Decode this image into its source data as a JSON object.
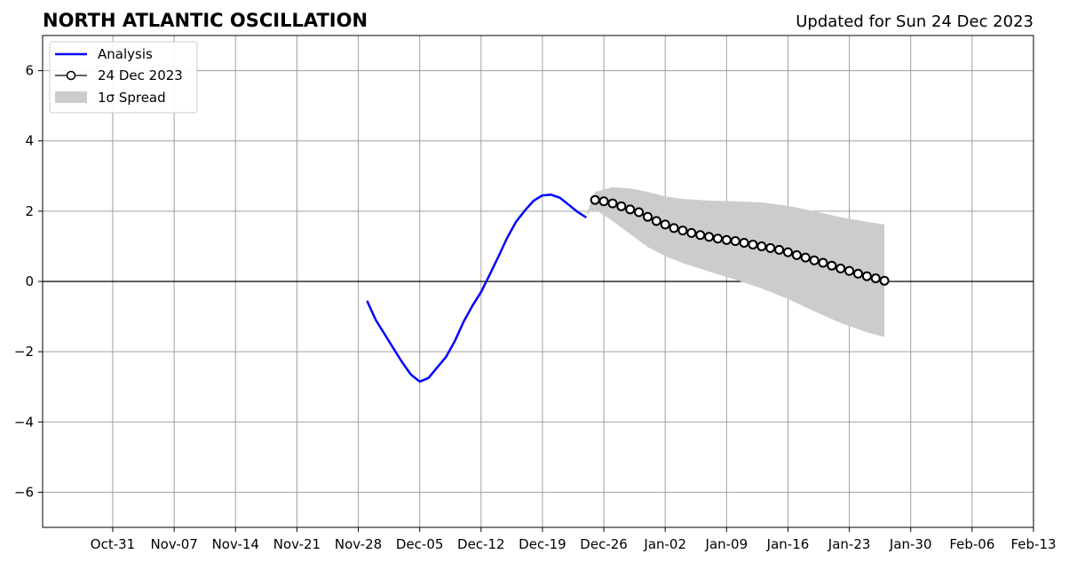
{
  "chart_data": {
    "type": "line",
    "title": "NORTH ATLANTIC OSCILLATION",
    "subtitle": "Updated for Sun 24 Dec 2023",
    "xlabel": "",
    "ylabel": "",
    "xlim": [
      "2023-10-23",
      "2024-02-13"
    ],
    "ylim": [
      -7,
      7
    ],
    "x_ticks": [
      {
        "date": "2023-10-31",
        "label": "Oct-31"
      },
      {
        "date": "2023-11-07",
        "label": "Nov-07"
      },
      {
        "date": "2023-11-14",
        "label": "Nov-14"
      },
      {
        "date": "2023-11-21",
        "label": "Nov-21"
      },
      {
        "date": "2023-11-28",
        "label": "Nov-28"
      },
      {
        "date": "2023-12-05",
        "label": "Dec-05"
      },
      {
        "date": "2023-12-12",
        "label": "Dec-12"
      },
      {
        "date": "2023-12-19",
        "label": "Dec-19"
      },
      {
        "date": "2023-12-26",
        "label": "Dec-26"
      },
      {
        "date": "2024-01-02",
        "label": "Jan-02"
      },
      {
        "date": "2024-01-09",
        "label": "Jan-09"
      },
      {
        "date": "2024-01-16",
        "label": "Jan-16"
      },
      {
        "date": "2024-01-23",
        "label": "Jan-23"
      },
      {
        "date": "2024-01-30",
        "label": "Jan-30"
      },
      {
        "date": "2024-02-06",
        "label": "Feb-06"
      },
      {
        "date": "2024-02-13",
        "label": "Feb-13"
      }
    ],
    "y_ticks": [
      {
        "value": -6,
        "label": "−6"
      },
      {
        "value": -4,
        "label": "−4"
      },
      {
        "value": -2,
        "label": "−2"
      },
      {
        "value": 0,
        "label": "0"
      },
      {
        "value": 2,
        "label": "2"
      },
      {
        "value": 4,
        "label": "4"
      },
      {
        "value": 6,
        "label": "6"
      }
    ],
    "grid": true,
    "zero_line": true,
    "legend_position": "top-left",
    "series": [
      {
        "name": "Analysis",
        "kind": "line",
        "color": "#0000ff",
        "x": [
          "2023-11-29",
          "2023-11-30",
          "2023-12-01",
          "2023-12-02",
          "2023-12-03",
          "2023-12-04",
          "2023-12-05",
          "2023-12-06",
          "2023-12-07",
          "2023-12-08",
          "2023-12-09",
          "2023-12-10",
          "2023-12-11",
          "2023-12-12",
          "2023-12-13",
          "2023-12-14",
          "2023-12-15",
          "2023-12-16",
          "2023-12-17",
          "2023-12-18",
          "2023-12-19",
          "2023-12-20",
          "2023-12-21",
          "2023-12-22",
          "2023-12-23",
          "2023-12-24"
        ],
        "y": [
          -0.55,
          -1.1,
          -1.5,
          -1.9,
          -2.3,
          -2.65,
          -2.85,
          -2.75,
          -2.45,
          -2.15,
          -1.7,
          -1.15,
          -0.7,
          -0.3,
          0.2,
          0.72,
          1.25,
          1.7,
          2.02,
          2.3,
          2.45,
          2.47,
          2.38,
          2.18,
          1.98,
          1.82
        ]
      },
      {
        "name": "24 Dec 2023",
        "kind": "line-marker",
        "color": "#000000",
        "marker_face": "#ffffff",
        "x": [
          "2023-12-25",
          "2023-12-26",
          "2023-12-27",
          "2023-12-28",
          "2023-12-29",
          "2023-12-30",
          "2023-12-31",
          "2024-01-01",
          "2024-01-02",
          "2024-01-03",
          "2024-01-04",
          "2024-01-05",
          "2024-01-06",
          "2024-01-07",
          "2024-01-08",
          "2024-01-09",
          "2024-01-10",
          "2024-01-11",
          "2024-01-12",
          "2024-01-13",
          "2024-01-14",
          "2024-01-15",
          "2024-01-16",
          "2024-01-17",
          "2024-01-18",
          "2024-01-19",
          "2024-01-20",
          "2024-01-21",
          "2024-01-22",
          "2024-01-23",
          "2024-01-24",
          "2024-01-25",
          "2024-01-26",
          "2024-01-27"
        ],
        "y": [
          2.32,
          2.28,
          2.22,
          2.14,
          2.05,
          1.97,
          1.84,
          1.72,
          1.62,
          1.52,
          1.45,
          1.38,
          1.32,
          1.27,
          1.22,
          1.18,
          1.15,
          1.1,
          1.05,
          1.0,
          0.95,
          0.9,
          0.83,
          0.75,
          0.68,
          0.6,
          0.53,
          0.45,
          0.37,
          0.3,
          0.22,
          0.15,
          0.09,
          0.02
        ]
      },
      {
        "name": "1σ Spread",
        "kind": "band",
        "color": "#cccccc",
        "x": [
          "2023-12-24",
          "2023-12-25",
          "2023-12-27",
          "2023-12-29",
          "2023-12-31",
          "2024-01-02",
          "2024-01-04",
          "2024-01-07",
          "2024-01-10",
          "2024-01-13",
          "2024-01-16",
          "2024-01-19",
          "2024-01-22",
          "2024-01-25",
          "2024-01-27"
        ],
        "upper": [
          1.9,
          2.55,
          2.68,
          2.65,
          2.55,
          2.42,
          2.35,
          2.3,
          2.28,
          2.25,
          2.15,
          2.0,
          1.83,
          1.7,
          1.62
        ],
        "lower": [
          1.9,
          2.05,
          1.72,
          1.35,
          0.98,
          0.72,
          0.52,
          0.28,
          0.05,
          -0.2,
          -0.5,
          -0.85,
          -1.18,
          -1.45,
          -1.58
        ]
      }
    ]
  }
}
